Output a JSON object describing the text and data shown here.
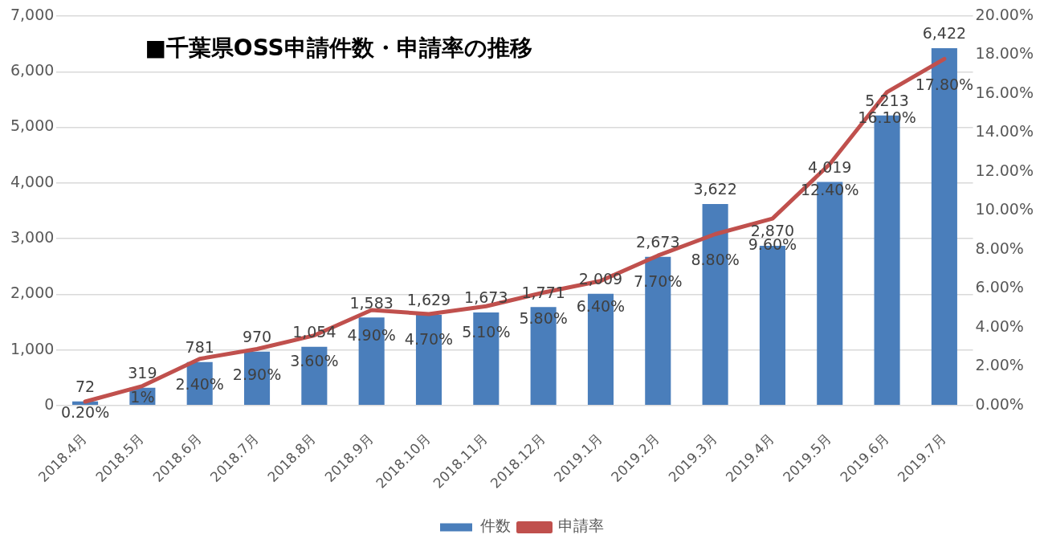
{
  "chart_data": {
    "type": "bar",
    "title": "■千葉県OSS申請件数・申請率の推移",
    "categories": [
      "2018.4月",
      "2018.5月",
      "2018.6月",
      "2018.7月",
      "2018.8月",
      "2018.9月",
      "2018.10月",
      "2018.11月",
      "2018.12月",
      "2019.1月",
      "2019.2月",
      "2019.3月",
      "2019.4月",
      "2019.5月",
      "2019.6月",
      "2019.7月"
    ],
    "series": [
      {
        "name": "件数",
        "type": "bar",
        "color": "#4a7ebb",
        "values": [
          72,
          319,
          781,
          970,
          1054,
          1583,
          1629,
          1673,
          1771,
          2009,
          2673,
          3622,
          2870,
          4019,
          5213,
          6422
        ],
        "value_labels": [
          "72",
          "319",
          "781",
          "970",
          "1,054",
          "1,583",
          "1,629",
          "1,673",
          "1,771",
          "2,009",
          "2,673",
          "3,622",
          "2,870",
          "4,019",
          "5,213",
          "6,422"
        ]
      },
      {
        "name": "申請率",
        "type": "line",
        "axis": "y2",
        "color": "#c0504d",
        "values": [
          0.2,
          1,
          2.4,
          2.9,
          3.6,
          4.9,
          4.7,
          5.1,
          5.8,
          6.4,
          7.7,
          8.8,
          9.6,
          12.4,
          16.1,
          17.8
        ],
        "value_labels": [
          "0.20%",
          "1%",
          "2.40%",
          "2.90%",
          "3.60%",
          "4.90%",
          "4.70%",
          "5.10%",
          "5.80%",
          "6.40%",
          "7.70%",
          "8.80%",
          "9.60%",
          "12.40%",
          "16.10%",
          "17.80%"
        ]
      }
    ],
    "ylim": [
      0,
      7000
    ],
    "yticks": [
      0,
      {
        "value": 1000,
        "label": "1,000"
      },
      {
        "value": 2000,
        "label": "2,000"
      },
      {
        "value": 3000,
        "label": "3,000"
      },
      {
        "value": 4000,
        "label": "4,000"
      },
      {
        "value": 5000,
        "label": "5,000"
      },
      {
        "value": 6000,
        "label": "6,000"
      },
      {
        "value": 7000,
        "label": "7,000"
      }
    ],
    "y2lim": [
      0,
      20
    ],
    "y2ticks": [
      {
        "value": 0,
        "label": "0.00%"
      },
      {
        "value": 2,
        "label": "2.00%"
      },
      {
        "value": 4,
        "label": "4.00%"
      },
      {
        "value": 6,
        "label": "6.00%"
      },
      {
        "value": 8,
        "label": "8.00%"
      },
      {
        "value": 10,
        "label": "10.00%"
      },
      {
        "value": 12,
        "label": "12.00%"
      },
      {
        "value": 14,
        "label": "14.00%"
      },
      {
        "value": 16,
        "label": "16.00%"
      },
      {
        "value": 18,
        "label": "18.00%"
      },
      {
        "value": 20,
        "label": "20.00%"
      }
    ],
    "grid": "y",
    "legend": "bottom",
    "marker": "none",
    "line_style": "solid"
  }
}
